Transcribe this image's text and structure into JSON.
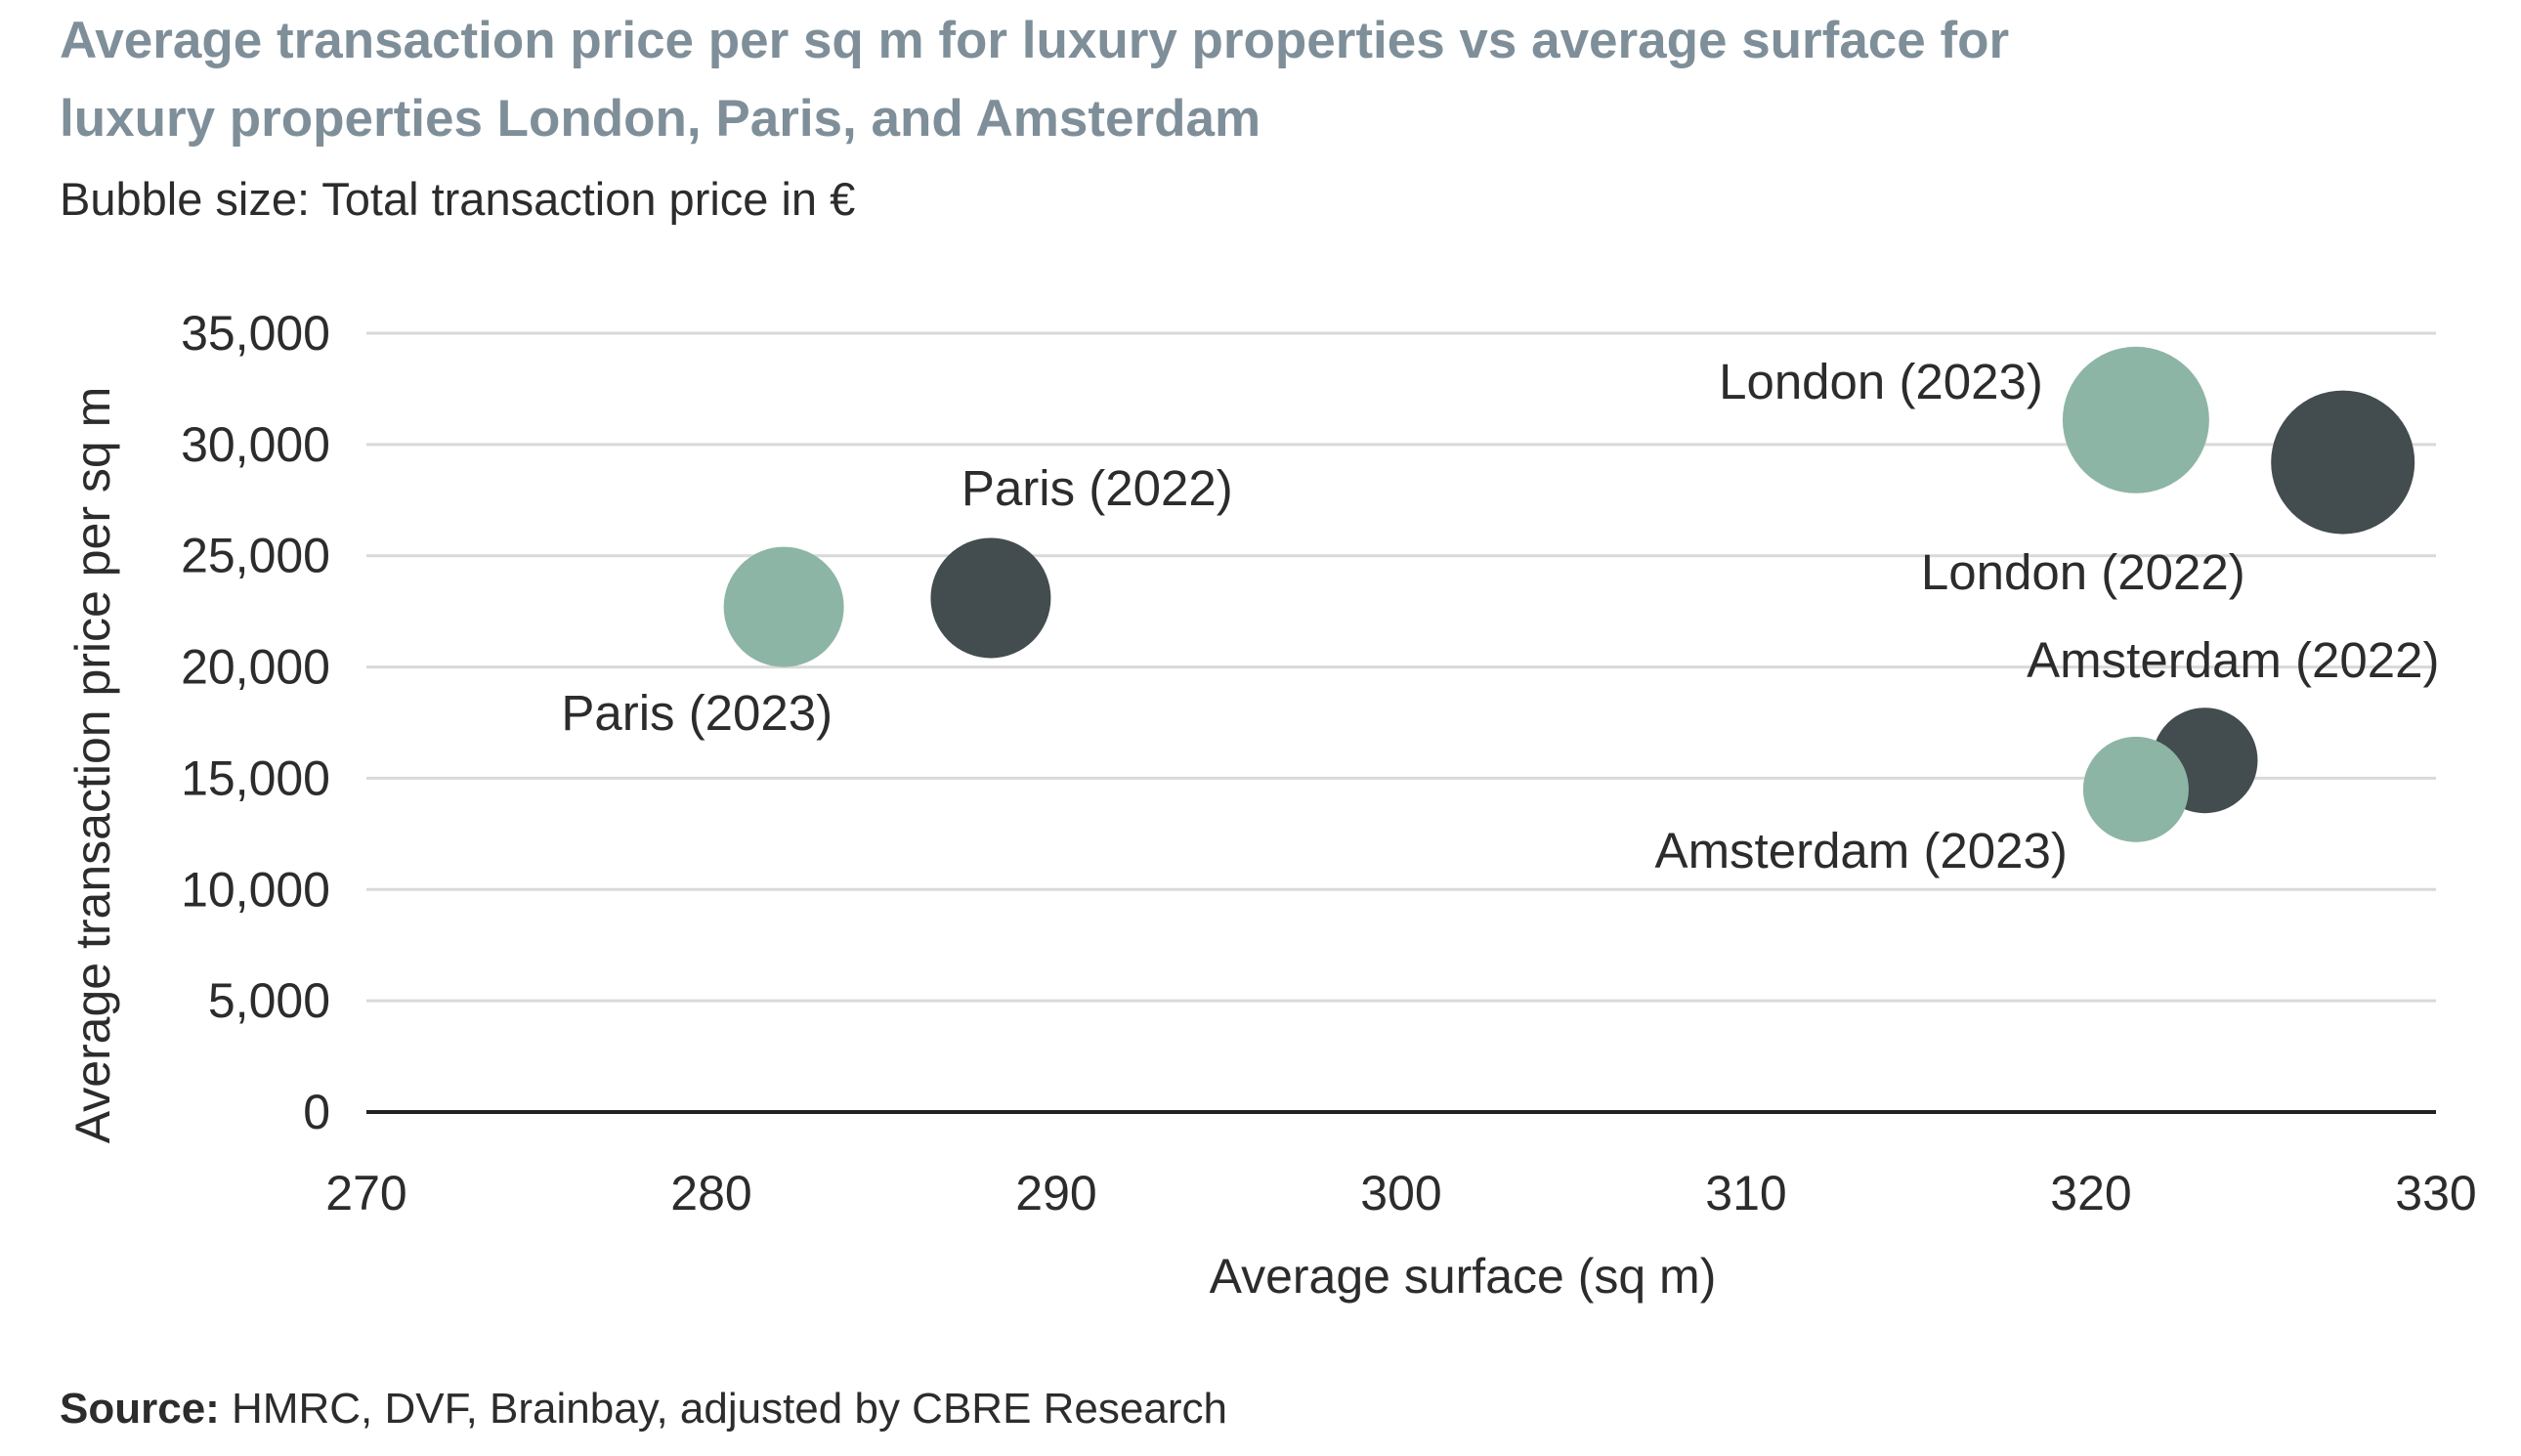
{
  "title": "Average transaction price per sq m for luxury properties vs average surface for luxury properties London, Paris, and Amsterdam",
  "subtitle": "Bubble size: Total transaction price in €",
  "source_label": "Source:",
  "source_text": " HMRC, DVF, Brainbay, adjusted by CBRE Research",
  "colors": {
    "y2022": "#434c4f",
    "y2023": "#8db5a6",
    "grid": "#d9d9d9",
    "axis": "#222222",
    "text": "#2c2c2c"
  },
  "chart_data": {
    "type": "scatter",
    "subtype": "bubble",
    "xlabel": "Average surface (sq m)",
    "ylabel": "Average transaction price per sq m",
    "xlim": [
      270,
      330
    ],
    "ylim": [
      0,
      35000
    ],
    "x_ticks": [
      "270",
      "280",
      "290",
      "300",
      "310",
      "320",
      "330"
    ],
    "y_ticks": [
      "0",
      "5,000",
      "10,000",
      "15,000",
      "20,000",
      "25,000",
      "30,000",
      "35,000"
    ],
    "grid": "horizontal",
    "legend": "none",
    "points": [
      {
        "label": "London (2023)",
        "x": 321.3,
        "y": 31100,
        "size": 1.0,
        "year": "2023"
      },
      {
        "label": "London (2022)",
        "x": 327.3,
        "y": 29200,
        "size": 0.98,
        "year": "2022"
      },
      {
        "label": "Paris (2022)",
        "x": 288.1,
        "y": 23100,
        "size": 0.82,
        "year": "2022"
      },
      {
        "label": "Paris (2023)",
        "x": 282.1,
        "y": 22700,
        "size": 0.82,
        "year": "2023"
      },
      {
        "label": "Amsterdam (2022)",
        "x": 323.3,
        "y": 15800,
        "size": 0.72,
        "year": "2022"
      },
      {
        "label": "Amsterdam (2023)",
        "x": 321.3,
        "y": 14500,
        "size": 0.72,
        "year": "2023"
      }
    ]
  }
}
